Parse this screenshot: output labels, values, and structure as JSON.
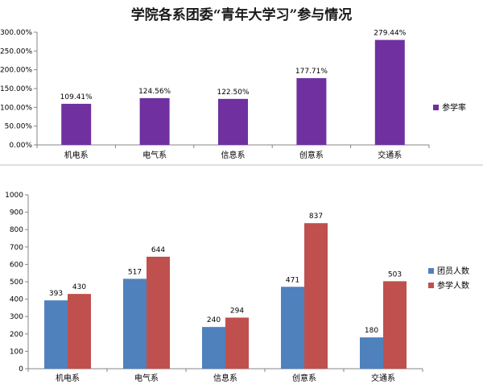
{
  "page": {
    "title": "学院各系团委“青年大学习”参与情况"
  },
  "colors": {
    "rate": "#7030a0",
    "members": "#4f81bd",
    "participants": "#c0504d",
    "axis": "#868686",
    "grid": "#d9d9d9"
  },
  "chart_data": [
    {
      "type": "bar",
      "categories": [
        "机电系",
        "电气系",
        "信息系",
        "创意系",
        "交通系"
      ],
      "series": [
        {
          "name": "参学率",
          "values": [
            109.41,
            124.56,
            122.5,
            177.71,
            279.44
          ],
          "labels": [
            "109.41%",
            "124.56%",
            "122.50%",
            "177.71%",
            "279.44%"
          ]
        }
      ],
      "ylim": [
        0,
        300
      ],
      "yticks": [
        "0.00%",
        "50.00%",
        "100.00%",
        "150.00%",
        "200.00%",
        "250.00%",
        "300.00%"
      ],
      "grid": false,
      "legend": "right"
    },
    {
      "type": "bar",
      "categories": [
        "机电系",
        "电气系",
        "信息系",
        "创意系",
        "交通系"
      ],
      "series": [
        {
          "name": "团员人数",
          "values": [
            393,
            517,
            240,
            471,
            180
          ],
          "labels": [
            "393",
            "517",
            "240",
            "471",
            "180"
          ]
        },
        {
          "name": "参学人数",
          "values": [
            430,
            644,
            294,
            837,
            503
          ],
          "labels": [
            "430",
            "644",
            "294",
            "837",
            "503"
          ]
        }
      ],
      "ylim": [
        0,
        1000
      ],
      "yticks": [
        "0",
        "100",
        "200",
        "300",
        "400",
        "500",
        "600",
        "700",
        "800",
        "900",
        "1000"
      ],
      "grid": false,
      "legend": "right"
    }
  ]
}
